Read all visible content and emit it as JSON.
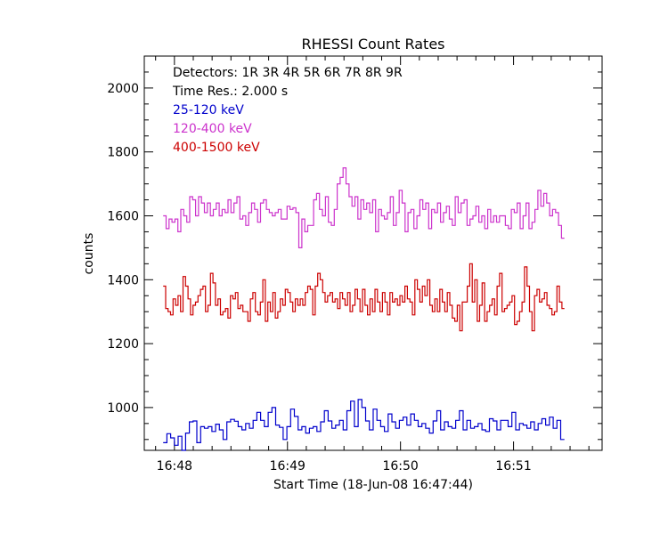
{
  "chart_data": {
    "type": "line",
    "title": "RHESSI Count Rates",
    "xlabel": "Start Time (18-Jun-08 16:47:44)",
    "ylabel": "counts",
    "x_unit": "seconds from 16:47:44",
    "xlim": [
      0,
      243
    ],
    "ylim": [
      866,
      2100
    ],
    "x_ticks": [
      {
        "value": 16,
        "label": "16:48"
      },
      {
        "value": 76,
        "label": "16:49"
      },
      {
        "value": 136,
        "label": "16:50"
      },
      {
        "value": 196,
        "label": "16:51"
      }
    ],
    "x_minor_step": 10,
    "y_ticks": [
      1000,
      1200,
      1400,
      1600,
      1800,
      2000
    ],
    "y_minor_step": 50,
    "grid": false,
    "legend_position": "top-left",
    "legend_lines": [
      {
        "text": "Detectors:  1R  3R  4R  5R  6R  7R  8R  9R",
        "color": "#000000"
      },
      {
        "text": "Time Res.: 2.000 s",
        "color": "#000000"
      }
    ],
    "step_seconds": 2,
    "x_start": 10,
    "series": [
      {
        "name": "25-120 keV",
        "color": "#0000cc",
        "values": [
          890,
          918,
          905,
          882,
          910,
          866,
          920,
          955,
          958,
          890,
          940,
          935,
          940,
          925,
          948,
          930,
          900,
          955,
          963,
          957,
          940,
          930,
          950,
          935,
          960,
          985,
          960,
          940,
          985,
          1000,
          945,
          938,
          900,
          940,
          995,
          972,
          930,
          940,
          920,
          935,
          940,
          925,
          955,
          990,
          958,
          935,
          945,
          960,
          930,
          990,
          1020,
          940,
          1025,
          1000,
          958,
          930,
          995,
          960,
          940,
          925,
          980,
          955,
          935,
          960,
          970,
          945,
          980,
          960,
          940,
          950,
          935,
          920,
          958,
          990,
          930,
          955,
          940,
          935,
          960,
          990,
          930,
          960,
          935,
          940,
          950,
          930,
          925,
          965,
          958,
          930,
          960,
          960,
          940,
          985,
          930,
          950,
          945,
          935,
          955,
          930,
          950,
          965,
          945,
          970,
          935,
          960,
          900
        ]
      },
      {
        "name": "120-400 keV",
        "color": "#cc33cc",
        "values": [
          1600,
          1560,
          1590,
          1580,
          1590,
          1550,
          1620,
          1600,
          1580,
          1660,
          1650,
          1600,
          1660,
          1640,
          1610,
          1640,
          1600,
          1620,
          1640,
          1600,
          1620,
          1610,
          1650,
          1610,
          1640,
          1660,
          1590,
          1600,
          1570,
          1610,
          1640,
          1620,
          1580,
          1640,
          1650,
          1620,
          1610,
          1600,
          1610,
          1620,
          1590,
          1590,
          1630,
          1620,
          1625,
          1610,
          1500,
          1590,
          1550,
          1570,
          1570,
          1650,
          1670,
          1620,
          1600,
          1660,
          1580,
          1570,
          1620,
          1700,
          1720,
          1750,
          1700,
          1660,
          1630,
          1660,
          1590,
          1650,
          1620,
          1640,
          1610,
          1650,
          1550,
          1620,
          1600,
          1590,
          1610,
          1660,
          1570,
          1610,
          1680,
          1640,
          1550,
          1610,
          1620,
          1560,
          1600,
          1650,
          1620,
          1640,
          1560,
          1620,
          1610,
          1640,
          1580,
          1610,
          1630,
          1590,
          1570,
          1660,
          1610,
          1640,
          1650,
          1570,
          1590,
          1600,
          1630,
          1580,
          1600,
          1560,
          1620,
          1580,
          1600,
          1580,
          1600,
          1600,
          1570,
          1560,
          1620,
          1610,
          1640,
          1560,
          1600,
          1640,
          1560,
          1580,
          1620,
          1680,
          1630,
          1670,
          1640,
          1600,
          1620,
          1610,
          1570,
          1530
        ]
      },
      {
        "name": "400-1500 keV",
        "color": "#cc0000",
        "values": [
          1380,
          1310,
          1300,
          1290,
          1340,
          1320,
          1350,
          1300,
          1410,
          1380,
          1340,
          1290,
          1320,
          1330,
          1350,
          1370,
          1380,
          1300,
          1320,
          1420,
          1390,
          1320,
          1340,
          1290,
          1300,
          1310,
          1280,
          1350,
          1340,
          1360,
          1310,
          1320,
          1300,
          1300,
          1270,
          1340,
          1360,
          1300,
          1290,
          1330,
          1400,
          1270,
          1330,
          1300,
          1360,
          1280,
          1300,
          1340,
          1320,
          1370,
          1360,
          1330,
          1300,
          1340,
          1320,
          1340,
          1320,
          1360,
          1380,
          1370,
          1290,
          1380,
          1420,
          1400,
          1360,
          1330,
          1350,
          1360,
          1330,
          1340,
          1310,
          1360,
          1340,
          1320,
          1360,
          1300,
          1320,
          1370,
          1340,
          1300,
          1370,
          1320,
          1290,
          1340,
          1300,
          1370,
          1330,
          1300,
          1360,
          1330,
          1290,
          1360,
          1330,
          1340,
          1320,
          1350,
          1330,
          1380,
          1340,
          1330,
          1290,
          1400,
          1370,
          1330,
          1380,
          1350,
          1400,
          1320,
          1300,
          1340,
          1300,
          1370,
          1330,
          1300,
          1360,
          1320,
          1280,
          1270,
          1320,
          1240,
          1330,
          1330,
          1380,
          1450,
          1330,
          1400,
          1270,
          1320,
          1390,
          1270,
          1300,
          1320,
          1340,
          1290,
          1380,
          1420,
          1300,
          1310,
          1320,
          1330,
          1350,
          1260,
          1270,
          1300,
          1330,
          1440,
          1380,
          1300,
          1240,
          1350,
          1370,
          1330,
          1340,
          1360,
          1320,
          1310,
          1290,
          1300,
          1380,
          1330,
          1310
        ]
      }
    ]
  }
}
